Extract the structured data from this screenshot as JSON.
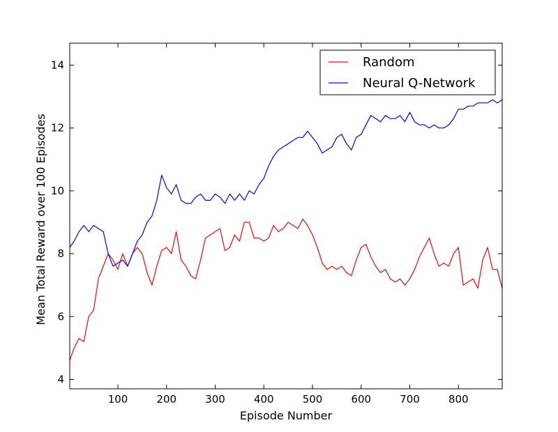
{
  "chart_data": {
    "type": "line",
    "xlabel": "Episode Number",
    "ylabel": "Mean Total Reward over 100 Episodes",
    "xlim": [
      1,
      890
    ],
    "ylim": [
      3.7,
      14.7
    ],
    "xticks": [
      100,
      200,
      300,
      400,
      500,
      600,
      700,
      800
    ],
    "yticks": [
      4,
      6,
      8,
      10,
      12,
      14
    ],
    "grid": false,
    "legend": "top-right",
    "series": [
      {
        "name": "Random",
        "color": "#ff0000",
        "x": [
          1,
          10,
          20,
          30,
          40,
          50,
          60,
          70,
          80,
          90,
          100,
          110,
          120,
          130,
          140,
          150,
          160,
          170,
          180,
          190,
          200,
          210,
          220,
          230,
          240,
          250,
          260,
          270,
          280,
          290,
          300,
          310,
          320,
          330,
          340,
          350,
          360,
          370,
          380,
          390,
          400,
          410,
          420,
          430,
          440,
          450,
          460,
          470,
          480,
          490,
          500,
          510,
          520,
          530,
          540,
          550,
          560,
          570,
          580,
          590,
          600,
          610,
          620,
          630,
          640,
          650,
          660,
          670,
          680,
          690,
          700,
          710,
          720,
          730,
          740,
          750,
          760,
          770,
          780,
          790,
          800,
          810,
          820,
          830,
          840,
          850,
          860,
          870,
          880,
          890
        ],
        "y": [
          4.6,
          5.0,
          5.3,
          5.2,
          6.0,
          6.2,
          7.2,
          7.6,
          8.0,
          7.8,
          7.5,
          8.0,
          7.6,
          8.0,
          8.2,
          8.0,
          7.4,
          7.0,
          7.6,
          8.1,
          8.2,
          8.0,
          8.7,
          7.8,
          7.6,
          7.3,
          7.2,
          7.8,
          8.5,
          8.6,
          8.7,
          8.8,
          8.1,
          8.2,
          8.6,
          8.4,
          9.0,
          9.0,
          8.5,
          8.5,
          8.4,
          8.5,
          8.9,
          8.7,
          8.8,
          9.0,
          8.9,
          8.8,
          9.1,
          8.9,
          8.6,
          8.2,
          7.7,
          7.5,
          7.6,
          7.5,
          7.6,
          7.4,
          7.3,
          7.8,
          8.2,
          8.3,
          7.9,
          7.6,
          7.4,
          7.5,
          7.2,
          7.1,
          7.2,
          7.0,
          7.2,
          7.5,
          7.9,
          8.2,
          8.5,
          8.0,
          7.6,
          7.7,
          7.6,
          8.0,
          8.2,
          7.0,
          7.1,
          7.2,
          6.9,
          7.8,
          8.2,
          7.5,
          7.5,
          6.9
        ]
      },
      {
        "name": "Neural Q-Network",
        "color": "#0000ff",
        "x": [
          1,
          10,
          20,
          30,
          40,
          50,
          60,
          70,
          80,
          90,
          100,
          110,
          120,
          130,
          140,
          150,
          160,
          170,
          180,
          190,
          200,
          210,
          220,
          230,
          240,
          250,
          260,
          270,
          280,
          290,
          300,
          310,
          320,
          330,
          340,
          350,
          360,
          370,
          380,
          390,
          400,
          410,
          420,
          430,
          440,
          450,
          460,
          470,
          480,
          490,
          500,
          510,
          520,
          530,
          540,
          550,
          560,
          570,
          580,
          590,
          600,
          610,
          620,
          630,
          640,
          650,
          660,
          670,
          680,
          690,
          700,
          710,
          720,
          730,
          740,
          750,
          760,
          770,
          780,
          790,
          800,
          810,
          820,
          830,
          840,
          850,
          860,
          870,
          880,
          890
        ],
        "y": [
          8.2,
          8.4,
          8.7,
          8.9,
          8.7,
          8.9,
          8.8,
          8.7,
          8.0,
          7.6,
          7.7,
          7.8,
          7.6,
          8.0,
          8.4,
          8.6,
          9.0,
          9.2,
          9.7,
          10.5,
          10.1,
          9.9,
          10.2,
          9.7,
          9.6,
          9.6,
          9.8,
          9.9,
          9.7,
          9.7,
          9.9,
          9.8,
          9.6,
          9.9,
          9.7,
          9.9,
          9.7,
          10.0,
          9.9,
          10.2,
          10.4,
          10.8,
          11.1,
          11.3,
          11.4,
          11.5,
          11.6,
          11.7,
          11.7,
          11.9,
          11.7,
          11.5,
          11.2,
          11.3,
          11.4,
          11.7,
          11.8,
          11.5,
          11.3,
          11.7,
          11.8,
          12.1,
          12.4,
          12.3,
          12.2,
          12.4,
          12.3,
          12.3,
          12.4,
          12.2,
          12.5,
          12.2,
          12.1,
          12.1,
          12.0,
          12.1,
          12.0,
          12.0,
          12.1,
          12.3,
          12.6,
          12.6,
          12.7,
          12.7,
          12.8,
          12.8,
          12.8,
          12.9,
          12.8,
          12.9
        ]
      }
    ]
  }
}
